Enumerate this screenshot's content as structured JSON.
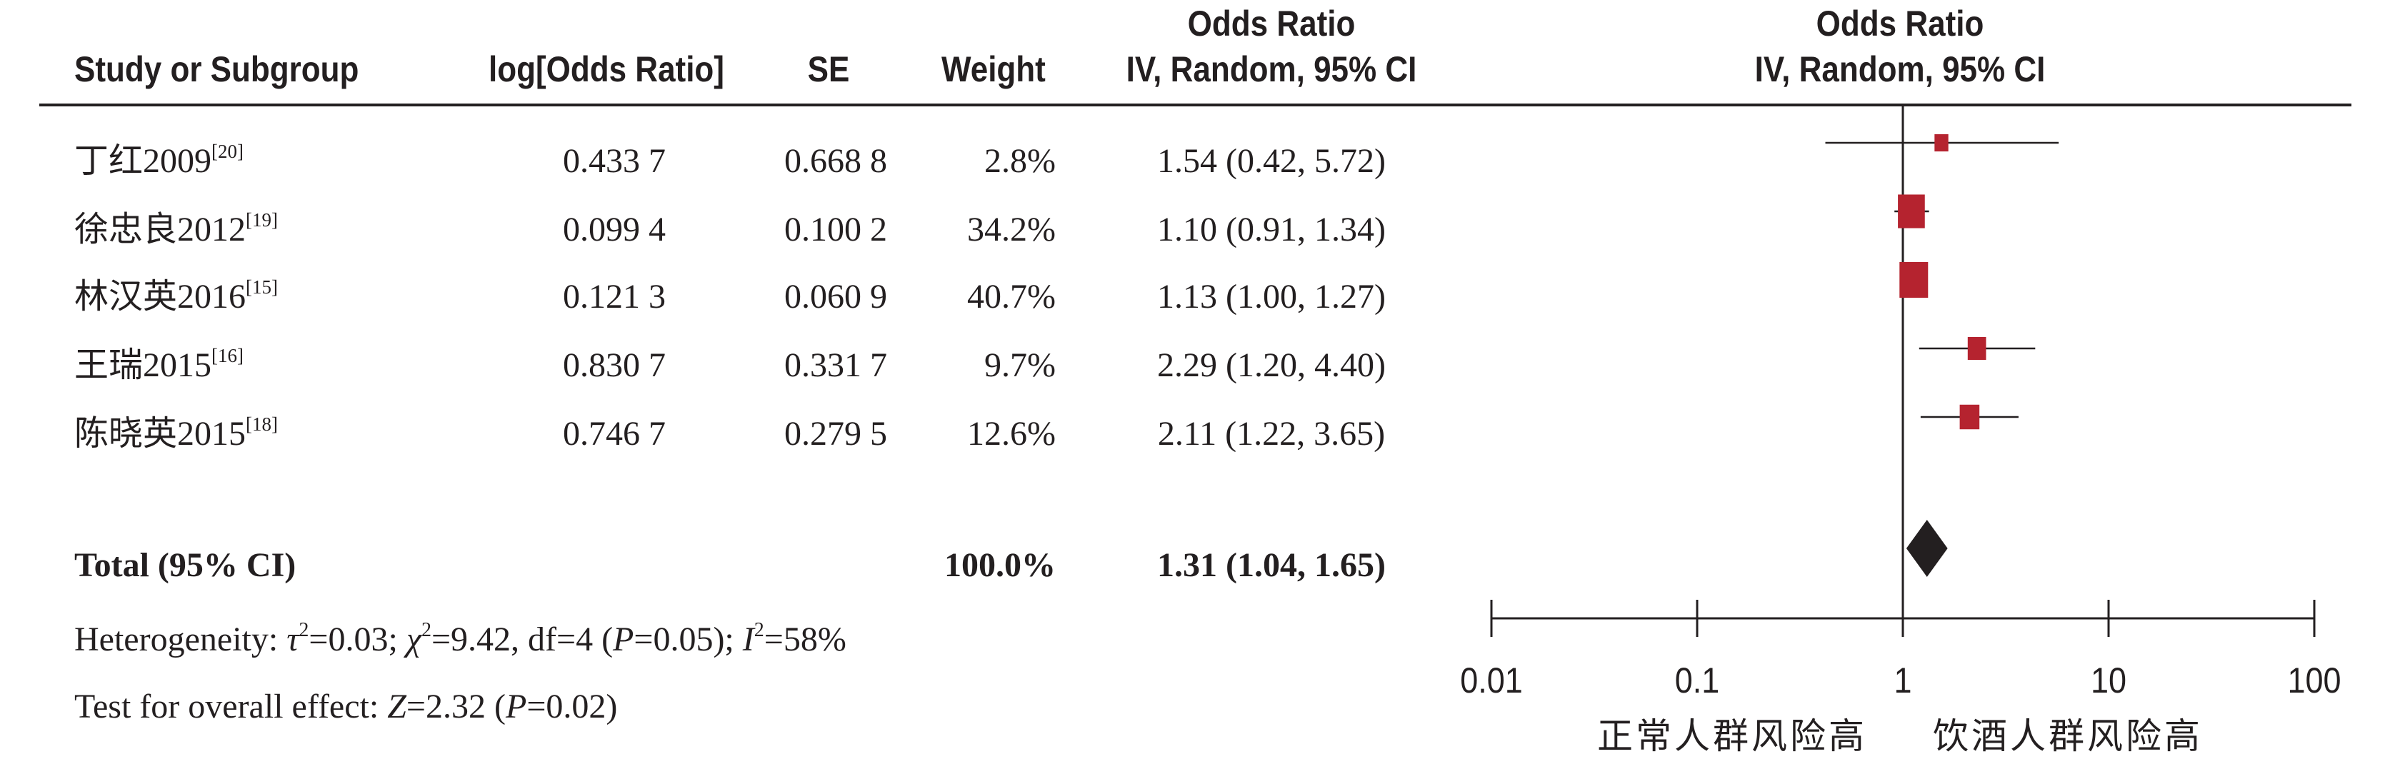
{
  "headers": {
    "study": "Study or Subgroup",
    "log_or": "log[Odds Ratio]",
    "se": "SE",
    "weight": "Weight",
    "or_col_title": "Odds Ratio",
    "or_col_method": "IV, Random, 95% CI",
    "plot_title": "Odds Ratio",
    "plot_method": "IV, Random, 95% CI"
  },
  "studies": [
    {
      "name": "丁红2009",
      "ref": "[20]",
      "log_or": "0.433 7",
      "se": "0.668 8",
      "weight": "2.8%",
      "ci": "1.54 (0.42, 5.72)"
    },
    {
      "name": "徐忠良2012",
      "ref": "[19]",
      "log_or": "0.099 4",
      "se": "0.100 2",
      "weight": "34.2%",
      "ci": "1.10 (0.91, 1.34)"
    },
    {
      "name": "林汉英2016",
      "ref": "[15]",
      "log_or": "0.121 3",
      "se": "0.060 9",
      "weight": "40.7%",
      "ci": "1.13 (1.00, 1.27)"
    },
    {
      "name": "王瑞2015",
      "ref": "[16]",
      "log_or": "0.830 7",
      "se": "0.331 7",
      "weight": "9.7%",
      "ci": "2.29 (1.20, 4.40)"
    },
    {
      "name": "陈晓英2015",
      "ref": "[18]",
      "log_or": "0.746 7",
      "se": "0.279 5",
      "weight": "12.6%",
      "ci": "2.11 (1.22, 3.65)"
    }
  ],
  "total": {
    "label": "Total (95% CI)",
    "weight": "100.0%",
    "ci": "1.31 (1.04, 1.65)"
  },
  "heterogeneity": {
    "prefix": "Heterogeneity: ",
    "tau_sym": "τ",
    "tau_val": "=0.03; ",
    "chi_sym": "χ",
    "chi_val": "=9.42, df=4 (",
    "p_sym": "P",
    "p_val": "=0.05); ",
    "i_sym": "I",
    "i_val": "=58%",
    "sq": "2"
  },
  "overall": {
    "prefix": "Test for overall effect: ",
    "z_sym": "Z",
    "z_val": "=2.32 (",
    "p_sym": "P",
    "p_val": "=0.02)"
  },
  "axis": {
    "ticks": [
      "0.01",
      "0.1",
      "1",
      "10",
      "100"
    ],
    "favours_left": "正常人群风险高",
    "favours_right": "饮酒人群风险高"
  },
  "chart_data": {
    "type": "forest",
    "scale": "log",
    "xlim": [
      0.01,
      100
    ],
    "reference_line": 1,
    "colors": {
      "study_marker": "#b5232f",
      "summary_diamond": "#231f20",
      "lines": "#231f20"
    },
    "studies": [
      {
        "name": "丁红2009",
        "or": 1.54,
        "ci": [
          0.42,
          5.72
        ],
        "weight": 2.8
      },
      {
        "name": "徐忠良2012",
        "or": 1.1,
        "ci": [
          0.91,
          1.34
        ],
        "weight": 34.2
      },
      {
        "name": "林汉英2016",
        "or": 1.13,
        "ci": [
          1.0,
          1.27
        ],
        "weight": 40.7
      },
      {
        "name": "王瑞2015",
        "or": 2.29,
        "ci": [
          1.2,
          4.4
        ],
        "weight": 9.7
      },
      {
        "name": "陈晓英2015",
        "or": 2.11,
        "ci": [
          1.22,
          3.65
        ],
        "weight": 12.6
      }
    ],
    "total": {
      "or": 1.31,
      "ci": [
        1.04,
        1.65
      ]
    }
  }
}
